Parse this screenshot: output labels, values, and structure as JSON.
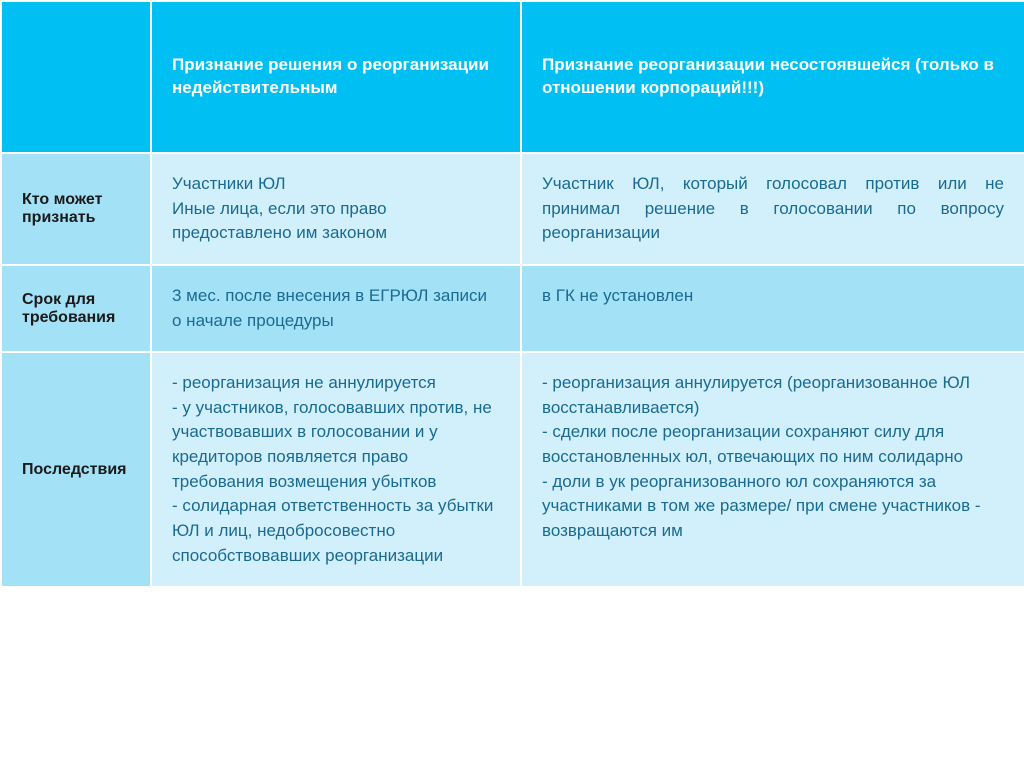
{
  "colors": {
    "header_bg": "#00c0f3",
    "header_text": "#ffffff",
    "rowlabel_bg": "#a3e1f7",
    "cell_light_bg": "#d1f0fb",
    "cell_mid_bg": "#a3e1f7",
    "body_text": "#1a6a92",
    "border": "#ffffff"
  },
  "columns": {
    "col1": "Признание решения о реорганизации недействительным",
    "col2": "Признание реорганизации несостоявшейся (только в отношении корпораций!!!)"
  },
  "rows": {
    "r1": {
      "label": "Кто может признать",
      "c1": "Участники ЮЛ\nИные лица, если это право предоставлено им законом",
      "c2": "Участник ЮЛ, который голосовал против или не принимал решение в голосовании по вопросу реорганизации"
    },
    "r2": {
      "label": "Срок для требования",
      "c1": "3 мес. после внесения в ЕГРЮЛ записи о начале процедуры",
      "c2": "в ГК не установлен"
    },
    "r3": {
      "label": "Последствия",
      "c1": "- реорганизация не аннулируется\n- у участников, голосовавших против, не участвовавших в голосовании и у кредиторов появляется право требования возмещения убытков\n- солидарная ответственность за убытки ЮЛ и лиц, недобросовестно способствовавших реорганизации",
      "c2": "- реорганизация аннулируется (реорганизованное ЮЛ восстанавливается)\n- сделки после реорганизации сохраняют силу для восстановленных юл, отвечающих по ним солидарно\n- доли в ук реорганизованного юл сохраняются за участниками в том же размере/ при смене участников - возвращаются им"
    }
  }
}
